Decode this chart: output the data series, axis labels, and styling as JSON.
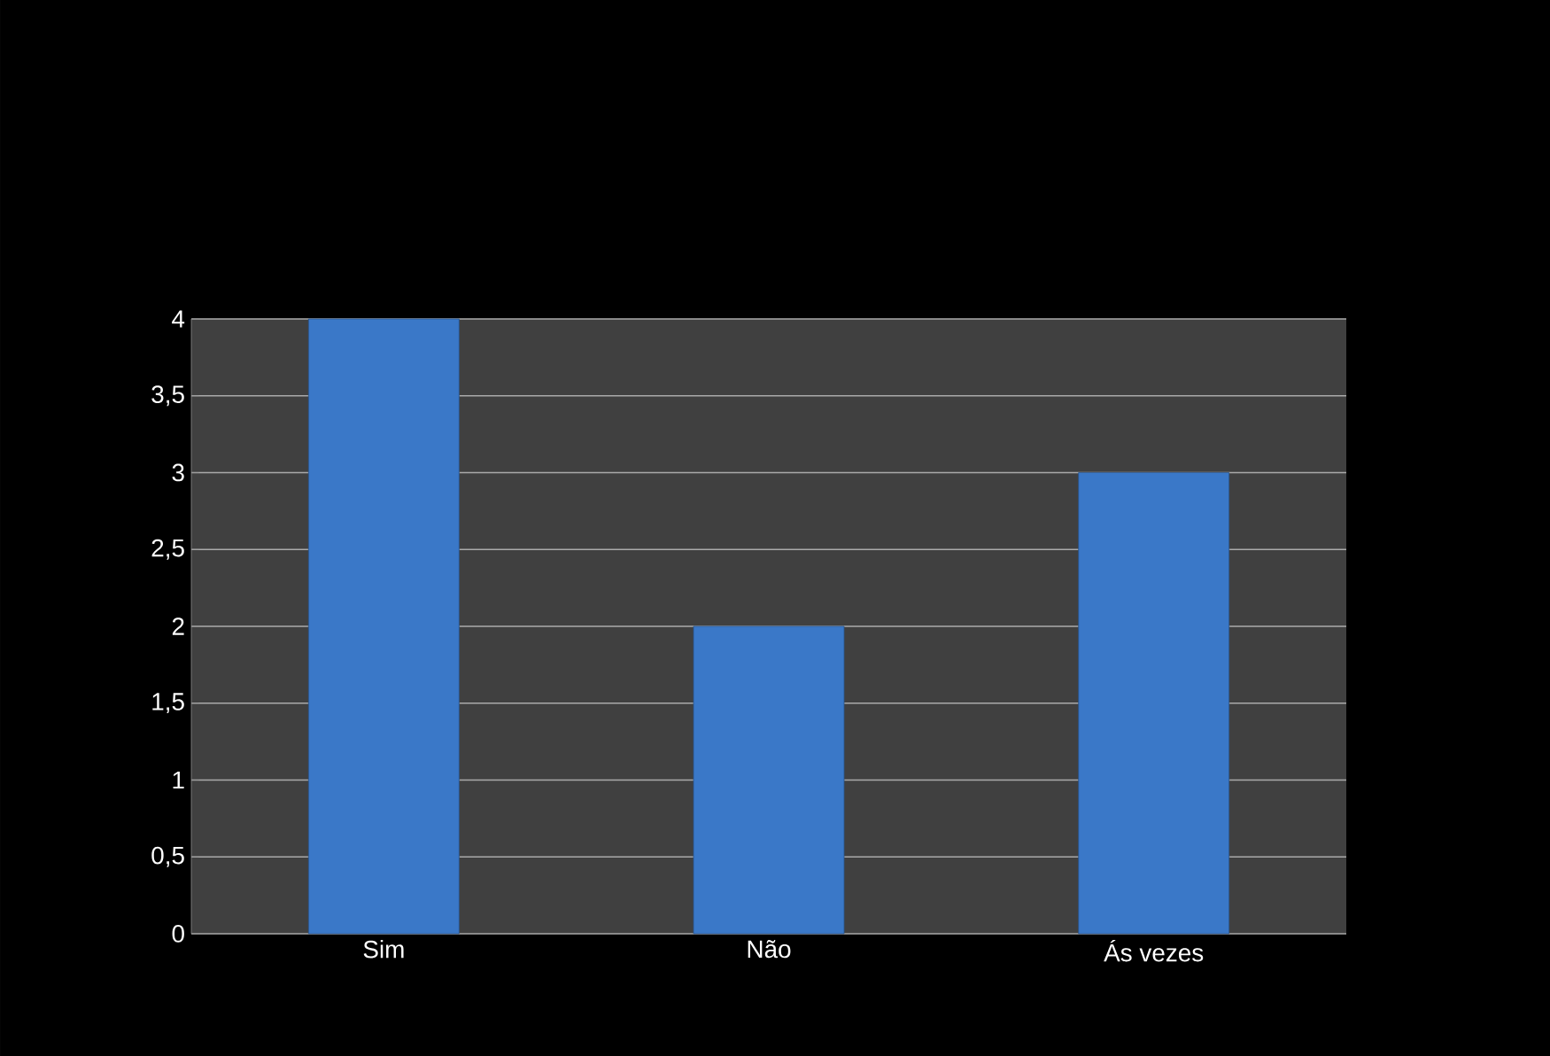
{
  "chart_data": {
    "type": "bar",
    "categories": [
      "Sim",
      "Não",
      "Ás vezes"
    ],
    "values": [
      4,
      2,
      3
    ],
    "color": "#3a78c8",
    "ylim": [
      0,
      4
    ],
    "yticks": [
      0,
      {
        "value": 0.5,
        "label": "0,5"
      },
      1,
      {
        "value": 1.5,
        "label": "1,5"
      },
      2,
      {
        "value": 2.5,
        "label": "2,5"
      },
      3,
      {
        "value": 3.5,
        "label": "3,5"
      },
      4
    ],
    "grid": "y"
  }
}
